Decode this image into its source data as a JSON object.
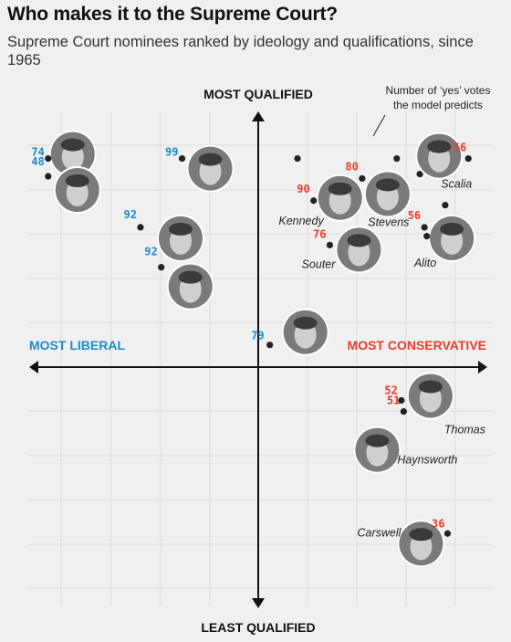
{
  "title": "Who makes it to the Supreme Court?",
  "subtitle": "Supreme Court nominees ranked by ideology and qualifications, since 1965",
  "colors": {
    "liberal": "#1f8ac9",
    "conservative": "#ef3b2c",
    "axis": "#111111",
    "grid": "#dcdcdc",
    "background": "#f0f0f0"
  },
  "annotation": {
    "line1": "Number of ‘yes’ votes",
    "line2": "the model predicts"
  },
  "chart_data": {
    "type": "scatter",
    "title": "Who makes it to the Supreme Court?",
    "subtitle": "Supreme Court nominees ranked by ideology and qualifications, since 1965",
    "axis_labels": {
      "top": "MOST QUALIFIED",
      "bottom": "LEAST QUALIFIED",
      "left": "MOST LIBERAL",
      "right": "MOST CONSERVATIVE"
    },
    "xlim": [
      -1,
      1
    ],
    "ylim": [
      -1,
      1
    ],
    "grid": true,
    "points": [
      {
        "name": "",
        "x": -0.91,
        "y": 0.94,
        "votes": 74,
        "side": "liberal",
        "face": true
      },
      {
        "name": "",
        "x": -0.91,
        "y": 0.86,
        "votes": 48,
        "side": "liberal",
        "face": true
      },
      {
        "name": "",
        "x": -0.33,
        "y": 0.94,
        "votes": 99,
        "side": "liberal",
        "face": true
      },
      {
        "name": "",
        "x": -0.51,
        "y": 0.63,
        "votes": 92,
        "side": "liberal",
        "face": true
      },
      {
        "name": "",
        "x": -0.42,
        "y": 0.45,
        "votes": 92,
        "side": "liberal",
        "face": true
      },
      {
        "name": "",
        "x": 0.05,
        "y": 0.1,
        "votes": 79,
        "side": "liberal",
        "face": true
      },
      {
        "name": "",
        "x": 0.17,
        "y": 0.94,
        "votes": null,
        "side": "conservative",
        "face": false
      },
      {
        "name": "Stevens",
        "x": 0.45,
        "y": 0.85,
        "votes": 80,
        "side": "conservative",
        "face": true
      },
      {
        "name": "",
        "x": 0.6,
        "y": 0.94,
        "votes": null,
        "side": "conservative",
        "face": false
      },
      {
        "name": "",
        "x": 0.7,
        "y": 0.87,
        "votes": null,
        "side": "conservative",
        "face": false
      },
      {
        "name": "Scalia",
        "x": 0.91,
        "y": 0.94,
        "votes": 56,
        "side": "conservative",
        "face": true
      },
      {
        "name": "Kennedy",
        "x": 0.24,
        "y": 0.75,
        "votes": 90,
        "side": "conservative",
        "face": true
      },
      {
        "name": "",
        "x": 0.81,
        "y": 0.73,
        "votes": null,
        "side": "conservative",
        "face": false
      },
      {
        "name": "Alito",
        "x": 0.72,
        "y": 0.63,
        "votes": 56,
        "side": "conservative",
        "face": true
      },
      {
        "name": "",
        "x": 0.73,
        "y": 0.59,
        "votes": null,
        "side": "conservative",
        "face": false
      },
      {
        "name": "Souter",
        "x": 0.31,
        "y": 0.55,
        "votes": 76,
        "side": "conservative",
        "face": true
      },
      {
        "name": "Thomas",
        "x": 0.62,
        "y": -0.15,
        "votes": 52,
        "side": "conservative",
        "face": true
      },
      {
        "name": "Haynsworth",
        "x": 0.63,
        "y": -0.2,
        "votes": 51,
        "side": "conservative",
        "face": true
      },
      {
        "name": "Carswell",
        "x": 0.82,
        "y": -0.75,
        "votes": 36,
        "side": "conservative",
        "face": true
      }
    ]
  }
}
